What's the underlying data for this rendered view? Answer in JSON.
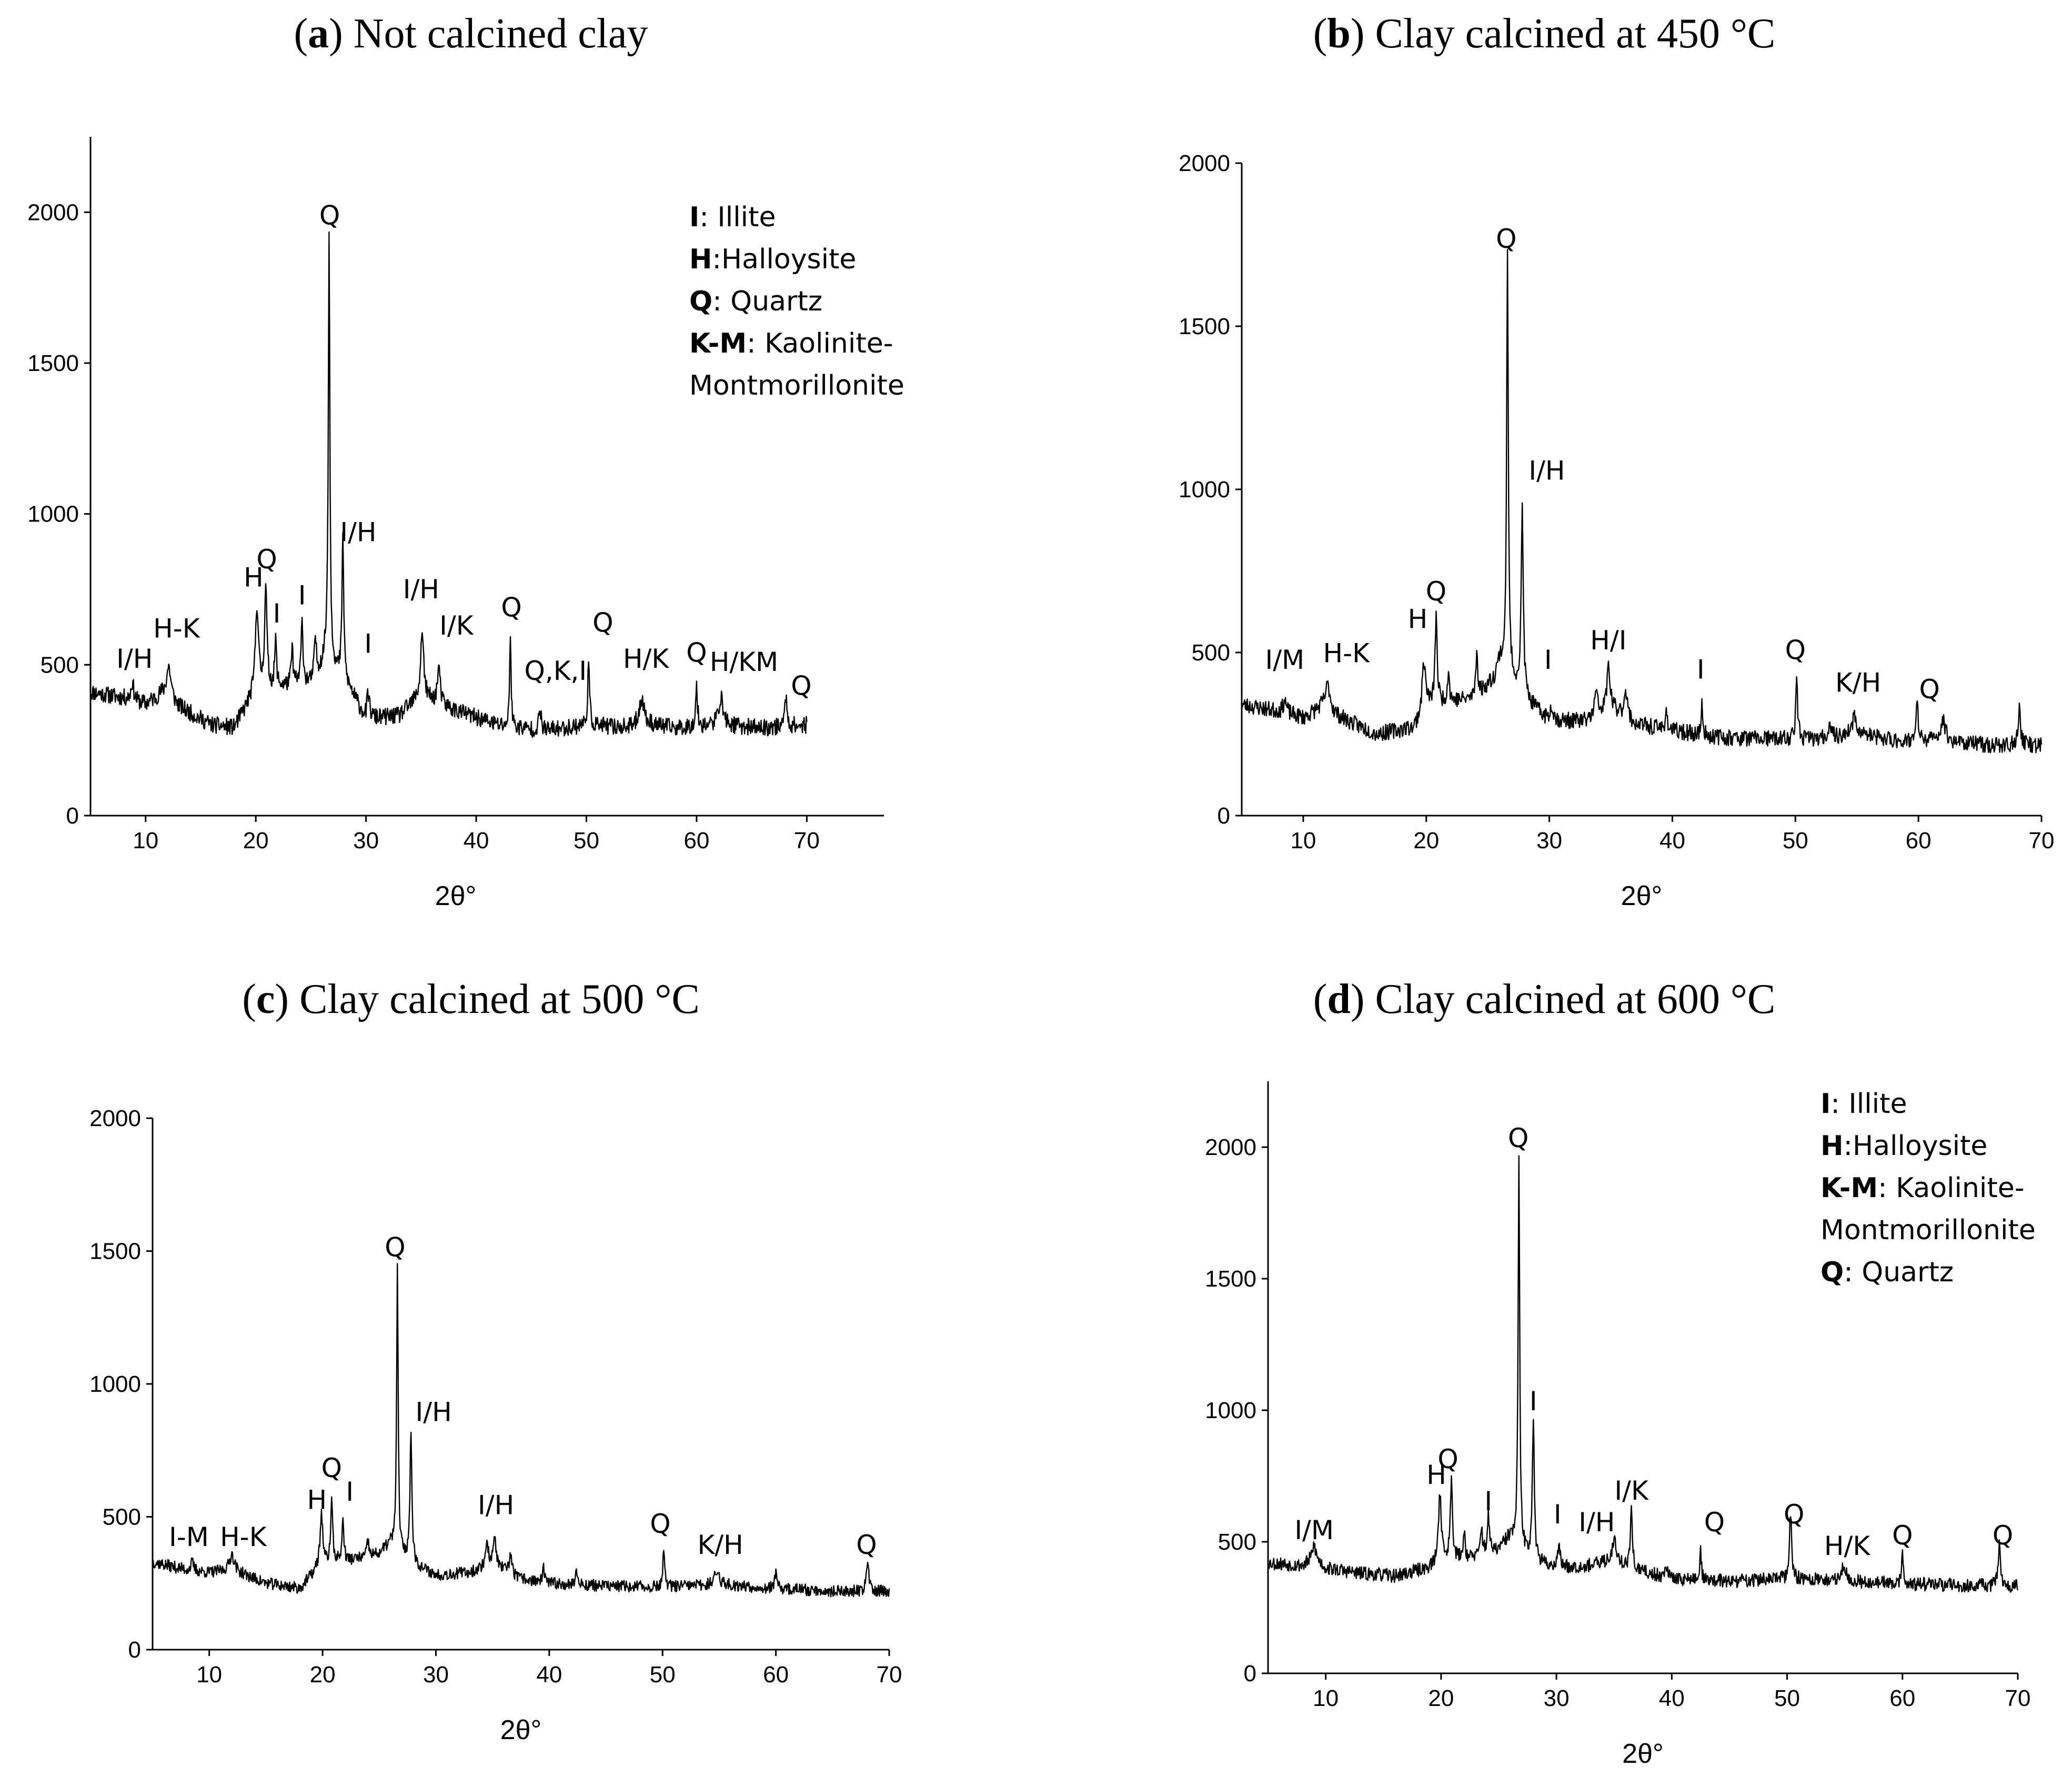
{
  "chart_data": [
    {
      "type": "line",
      "panel_letter": "a",
      "title_rest": "Not calcined clay",
      "xlabel": "2θ°",
      "ylabel": "",
      "xlim": [
        5,
        77
      ],
      "ylim": [
        0,
        2250
      ],
      "xticks": [
        10,
        20,
        30,
        40,
        50,
        60,
        70
      ],
      "yticks": [
        0,
        500,
        1000,
        1500,
        2000
      ],
      "baseline": [
        [
          5,
          410
        ],
        [
          8,
          390
        ],
        [
          10,
          370
        ],
        [
          11.5,
          400
        ],
        [
          13,
          360
        ],
        [
          16,
          300
        ],
        [
          18,
          290
        ],
        [
          19.5,
          380
        ],
        [
          21,
          420
        ],
        [
          23,
          430
        ],
        [
          25,
          440
        ],
        [
          26,
          500
        ],
        [
          26.5,
          560
        ],
        [
          27.3,
          480
        ],
        [
          28.5,
          420
        ],
        [
          30,
          320
        ],
        [
          33,
          330
        ],
        [
          35,
          400
        ],
        [
          36,
          380
        ],
        [
          38,
          350
        ],
        [
          42,
          300
        ],
        [
          46,
          280
        ],
        [
          50,
          300
        ],
        [
          54,
          290
        ],
        [
          56,
          300
        ],
        [
          58,
          290
        ],
        [
          62,
          300
        ],
        [
          66,
          290
        ],
        [
          70,
          300
        ]
      ],
      "x_end": 70,
      "peaks": [
        [
          8.8,
          60,
          0.3
        ],
        [
          12.1,
          110,
          0.5
        ],
        [
          20.1,
          300,
          0.35
        ],
        [
          20.9,
          340,
          0.25
        ],
        [
          21.8,
          150,
          0.2
        ],
        [
          23.3,
          120,
          0.2
        ],
        [
          24.2,
          200,
          0.22
        ],
        [
          25.4,
          130,
          0.2
        ],
        [
          26.65,
          1400,
          0.16
        ],
        [
          27.9,
          460,
          0.2
        ],
        [
          30.2,
          80,
          0.3
        ],
        [
          35.1,
          220,
          0.3
        ],
        [
          36.6,
          120,
          0.3
        ],
        [
          43.1,
          320,
          0.15
        ],
        [
          45.8,
          60,
          0.3
        ],
        [
          50.2,
          200,
          0.2
        ],
        [
          55,
          90,
          0.6
        ],
        [
          60,
          130,
          0.2
        ],
        [
          62.2,
          90,
          0.5
        ],
        [
          68.1,
          100,
          0.25
        ]
      ],
      "noise": 28,
      "seed": 11,
      "annotations": [
        {
          "text": "I/H",
          "x": 9,
          "y": 490
        },
        {
          "text": "H-K",
          "x": 12.8,
          "y": 590
        },
        {
          "text": "H",
          "x": 19.8,
          "y": 760
        },
        {
          "text": "Q",
          "x": 21,
          "y": 820
        },
        {
          "text": "I",
          "x": 21.9,
          "y": 640
        },
        {
          "text": "I",
          "x": 24.2,
          "y": 700
        },
        {
          "text": "Q",
          "x": 26.7,
          "y": 1960
        },
        {
          "text": "I/H",
          "x": 29.3,
          "y": 910
        },
        {
          "text": "I",
          "x": 30.2,
          "y": 540
        },
        {
          "text": "I/H",
          "x": 35,
          "y": 720
        },
        {
          "text": "I/K",
          "x": 38.2,
          "y": 600
        },
        {
          "text": "Q",
          "x": 43.2,
          "y": 660
        },
        {
          "text": "Q,K,I",
          "x": 47.2,
          "y": 450
        },
        {
          "text": "Q",
          "x": 51.5,
          "y": 610
        },
        {
          "text": "H/K",
          "x": 55.4,
          "y": 490
        },
        {
          "text": "Q",
          "x": 60,
          "y": 510
        },
        {
          "text": "H/KM",
          "x": 64.3,
          "y": 480
        },
        {
          "text": "Q",
          "x": 69.5,
          "y": 400
        }
      ],
      "legend": [
        {
          "key": "I",
          "label": ": Illite"
        },
        {
          "key": "H",
          "label": ":Halloysite"
        },
        {
          "key": "Q",
          "label": ": Quartz"
        },
        {
          "key": "K-M",
          "label": ": Kaolinite-"
        },
        {
          "key": "",
          "label": "Montmorillonite"
        }
      ]
    },
    {
      "type": "line",
      "panel_letter": "b",
      "title_rest": "Clay calcined at 450 °C",
      "xlabel": "2θ°",
      "ylabel": "",
      "xlim": [
        5,
        70
      ],
      "ylim": [
        0,
        2000
      ],
      "xticks": [
        10,
        20,
        30,
        40,
        50,
        60,
        70
      ],
      "yticks": [
        0,
        500,
        1000,
        1500,
        2000
      ],
      "baseline": [
        [
          5,
          340
        ],
        [
          8,
          320
        ],
        [
          10,
          300
        ],
        [
          11.5,
          330
        ],
        [
          13,
          300
        ],
        [
          16,
          250
        ],
        [
          19,
          270
        ],
        [
          20,
          340
        ],
        [
          22,
          350
        ],
        [
          24,
          360
        ],
        [
          25.5,
          420
        ],
        [
          26,
          480
        ],
        [
          27,
          420
        ],
        [
          28.5,
          340
        ],
        [
          30,
          290
        ],
        [
          33,
          290
        ],
        [
          35,
          330
        ],
        [
          37,
          280
        ],
        [
          40,
          260
        ],
        [
          44,
          240
        ],
        [
          48,
          235
        ],
        [
          52,
          235
        ],
        [
          55,
          250
        ],
        [
          58,
          230
        ],
        [
          62,
          230
        ],
        [
          66,
          215
        ],
        [
          70,
          215
        ]
      ],
      "x_end": 70,
      "peaks": [
        [
          8.5,
          40,
          0.3
        ],
        [
          12,
          80,
          0.5
        ],
        [
          19.8,
          150,
          0.3
        ],
        [
          20.8,
          270,
          0.2
        ],
        [
          21.8,
          90,
          0.2
        ],
        [
          24.1,
          140,
          0.2
        ],
        [
          26.6,
          1270,
          0.16
        ],
        [
          27.8,
          560,
          0.2
        ],
        [
          30.2,
          50,
          0.3
        ],
        [
          33.8,
          70,
          0.3
        ],
        [
          34.8,
          130,
          0.3
        ],
        [
          36.2,
          90,
          0.3
        ],
        [
          39.5,
          60,
          0.2
        ],
        [
          42.4,
          90,
          0.15
        ],
        [
          50.1,
          170,
          0.2
        ],
        [
          52.8,
          60,
          0.2
        ],
        [
          54.8,
          50,
          0.5
        ],
        [
          59.9,
          110,
          0.2
        ],
        [
          62,
          60,
          0.5
        ],
        [
          68.2,
          110,
          0.25
        ]
      ],
      "noise": 25,
      "seed": 23,
      "annotations": [
        {
          "text": "I/M",
          "x": 8.5,
          "y": 450
        },
        {
          "text": "H-K",
          "x": 13.5,
          "y": 470
        },
        {
          "text": "H",
          "x": 19.3,
          "y": 575
        },
        {
          "text": "Q",
          "x": 20.8,
          "y": 660
        },
        {
          "text": "Q",
          "x": 26.5,
          "y": 1740
        },
        {
          "text": "I/H",
          "x": 29.8,
          "y": 1030
        },
        {
          "text": "I",
          "x": 29.9,
          "y": 450
        },
        {
          "text": "H/I",
          "x": 34.8,
          "y": 510
        },
        {
          "text": "I",
          "x": 42.3,
          "y": 420
        },
        {
          "text": "Q",
          "x": 50,
          "y": 480
        },
        {
          "text": "K/H",
          "x": 55.1,
          "y": 380
        },
        {
          "text": "Q",
          "x": 60.9,
          "y": 360
        }
      ],
      "legend": []
    },
    {
      "type": "line",
      "panel_letter": "c",
      "title_rest": "Clay calcined at 500 °C",
      "xlabel": "2θ°",
      "ylabel": "",
      "xlim": [
        5,
        70
      ],
      "ylim": [
        0,
        2000
      ],
      "xticks": [
        10,
        20,
        30,
        40,
        50,
        60,
        70
      ],
      "yticks": [
        0,
        500,
        1000,
        1500,
        2000
      ],
      "baseline": [
        [
          5,
          330
        ],
        [
          8,
          300
        ],
        [
          10,
          290
        ],
        [
          12,
          300
        ],
        [
          15,
          250
        ],
        [
          18,
          230
        ],
        [
          19.5,
          300
        ],
        [
          21,
          330
        ],
        [
          23,
          340
        ],
        [
          25,
          360
        ],
        [
          26,
          400
        ],
        [
          27,
          360
        ],
        [
          28.5,
          310
        ],
        [
          30,
          280
        ],
        [
          33,
          290
        ],
        [
          35,
          320
        ],
        [
          37,
          270
        ],
        [
          40,
          250
        ],
        [
          45,
          240
        ],
        [
          50,
          235
        ],
        [
          55,
          245
        ],
        [
          60,
          230
        ],
        [
          65,
          220
        ],
        [
          70,
          220
        ]
      ],
      "x_end": 70,
      "peaks": [
        [
          8.5,
          30,
          0.3
        ],
        [
          12,
          60,
          0.5
        ],
        [
          19.9,
          200,
          0.3
        ],
        [
          20.8,
          240,
          0.2
        ],
        [
          21.8,
          150,
          0.2
        ],
        [
          24,
          60,
          0.2
        ],
        [
          26.6,
          1060,
          0.16
        ],
        [
          27.8,
          490,
          0.2
        ],
        [
          34.5,
          90,
          0.3
        ],
        [
          35.2,
          100,
          0.3
        ],
        [
          36.6,
          80,
          0.3
        ],
        [
          39.5,
          50,
          0.2
        ],
        [
          42.4,
          70,
          0.15
        ],
        [
          50.1,
          130,
          0.2
        ],
        [
          54.8,
          50,
          0.5
        ],
        [
          60,
          60,
          0.2
        ],
        [
          68.1,
          110,
          0.25
        ]
      ],
      "noise": 22,
      "seed": 37,
      "annotations": [
        {
          "text": "I-M",
          "x": 8.2,
          "y": 390
        },
        {
          "text": "H-K",
          "x": 13,
          "y": 390
        },
        {
          "text": "H",
          "x": 19.5,
          "y": 530
        },
        {
          "text": "Q",
          "x": 20.8,
          "y": 650
        },
        {
          "text": "I",
          "x": 22.4,
          "y": 560
        },
        {
          "text": "Q",
          "x": 26.4,
          "y": 1480
        },
        {
          "text": "I/H",
          "x": 29.8,
          "y": 860
        },
        {
          "text": "I/H",
          "x": 35.3,
          "y": 510
        },
        {
          "text": "Q",
          "x": 49.8,
          "y": 440
        },
        {
          "text": "K/H",
          "x": 55.1,
          "y": 360
        },
        {
          "text": "Q",
          "x": 68,
          "y": 360
        }
      ],
      "legend": []
    },
    {
      "type": "line",
      "panel_letter": "d",
      "title_rest": "Clay calcined at 600 °C",
      "xlabel": "2θ°",
      "ylabel": "",
      "xlim": [
        5,
        70
      ],
      "ylim": [
        0,
        2250
      ],
      "xticks": [
        10,
        20,
        30,
        40,
        50,
        60,
        70
      ],
      "yticks": [
        0,
        500,
        1000,
        1500,
        2000
      ],
      "baseline": [
        [
          5,
          420
        ],
        [
          8,
          410
        ],
        [
          9,
          440
        ],
        [
          10,
          400
        ],
        [
          13,
          380
        ],
        [
          16,
          370
        ],
        [
          19,
          400
        ],
        [
          20.5,
          430
        ],
        [
          23,
          440
        ],
        [
          25,
          470
        ],
        [
          26,
          520
        ],
        [
          27,
          470
        ],
        [
          28.5,
          420
        ],
        [
          30,
          400
        ],
        [
          33,
          410
        ],
        [
          35,
          430
        ],
        [
          37,
          390
        ],
        [
          40,
          360
        ],
        [
          45,
          350
        ],
        [
          50,
          360
        ],
        [
          55,
          350
        ],
        [
          60,
          340
        ],
        [
          65,
          335
        ],
        [
          70,
          330
        ]
      ],
      "x_end": 70,
      "peaks": [
        [
          9,
          50,
          0.3
        ],
        [
          19.9,
          270,
          0.3
        ],
        [
          20.9,
          310,
          0.22
        ],
        [
          22,
          100,
          0.2
        ],
        [
          23.5,
          110,
          0.2
        ],
        [
          24.1,
          150,
          0.2
        ],
        [
          26.75,
          1470,
          0.16
        ],
        [
          28,
          540,
          0.2
        ],
        [
          30.2,
          80,
          0.3
        ],
        [
          35,
          80,
          0.4
        ],
        [
          36.5,
          230,
          0.2
        ],
        [
          39.5,
          60,
          0.2
        ],
        [
          42.5,
          120,
          0.15
        ],
        [
          50.3,
          260,
          0.2
        ],
        [
          54.9,
          60,
          0.5
        ],
        [
          60,
          110,
          0.2
        ],
        [
          68.4,
          150,
          0.25
        ]
      ],
      "noise": 26,
      "seed": 53,
      "annotations": [
        {
          "text": "I/M",
          "x": 9,
          "y": 510
        },
        {
          "text": "H",
          "x": 19.6,
          "y": 720
        },
        {
          "text": "Q",
          "x": 20.6,
          "y": 780
        },
        {
          "text": "I",
          "x": 24.1,
          "y": 620
        },
        {
          "text": "Q",
          "x": 26.7,
          "y": 2000
        },
        {
          "text": "I",
          "x": 28,
          "y": 1000
        },
        {
          "text": "I",
          "x": 30.1,
          "y": 570
        },
        {
          "text": "I/H",
          "x": 33.5,
          "y": 540
        },
        {
          "text": "I/K",
          "x": 36.5,
          "y": 660
        },
        {
          "text": "Q",
          "x": 43.7,
          "y": 540
        },
        {
          "text": "Q",
          "x": 50.6,
          "y": 570
        },
        {
          "text": "H/K",
          "x": 55.2,
          "y": 450
        },
        {
          "text": "Q",
          "x": 60,
          "y": 490
        },
        {
          "text": "Q",
          "x": 68.7,
          "y": 490
        }
      ],
      "legend": [
        {
          "key": "I",
          "label": ": Illite"
        },
        {
          "key": "H",
          "label": ":Halloysite"
        },
        {
          "key": "K-M",
          "label": ": Kaolinite-"
        },
        {
          "key": "",
          "label": "Montmorillonite"
        },
        {
          "key": "Q",
          "label": ": Quartz"
        }
      ]
    }
  ]
}
